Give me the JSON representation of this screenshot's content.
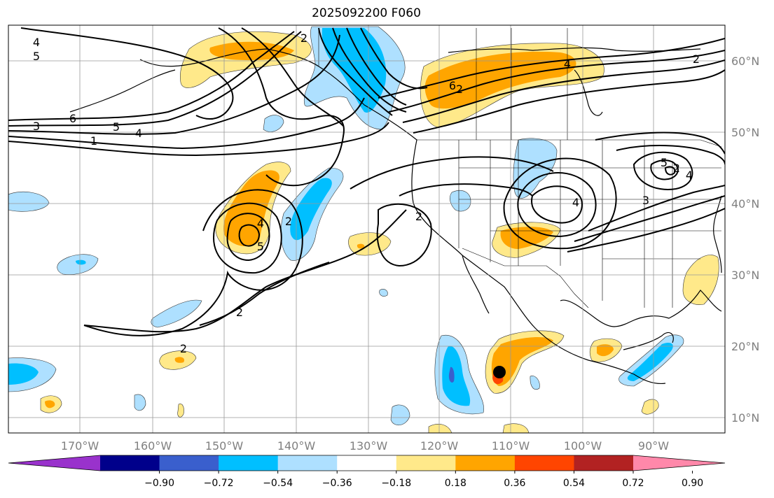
{
  "title": "2025092200 F060",
  "lon_labels": [
    "170°W",
    "160°W",
    "150°W",
    "140°W",
    "130°W",
    "120°W",
    "110°W",
    "100°W",
    "90°W"
  ],
  "lat_labels": [
    "60°N",
    "50°N",
    "40°N",
    "30°N",
    "20°N",
    "10°N"
  ],
  "colorbar": {
    "ticks": [
      "−0.90",
      "−0.72",
      "−0.54",
      "−0.36",
      "−0.18",
      "0.18",
      "0.36",
      "0.54",
      "0.72",
      "0.90"
    ],
    "colors": [
      "#9932cc",
      "#00008b",
      "#3a5fcd",
      "#00bfff",
      "#aee0ff",
      "#ffffff",
      "#ffe98a",
      "#ffa500",
      "#ff4500",
      "#b22222",
      "#ff88aa"
    ]
  },
  "contour_labels": [
    "4",
    "5",
    "3",
    "6",
    "5",
    "4",
    "1",
    "2",
    "6",
    "4",
    "2",
    "4",
    "5",
    "2",
    "2",
    "2",
    "4",
    "5",
    "2",
    "4",
    "2",
    "3",
    "2"
  ],
  "colors": {
    "line": "#000000",
    "grid": "#999999",
    "label": "#808080"
  }
}
